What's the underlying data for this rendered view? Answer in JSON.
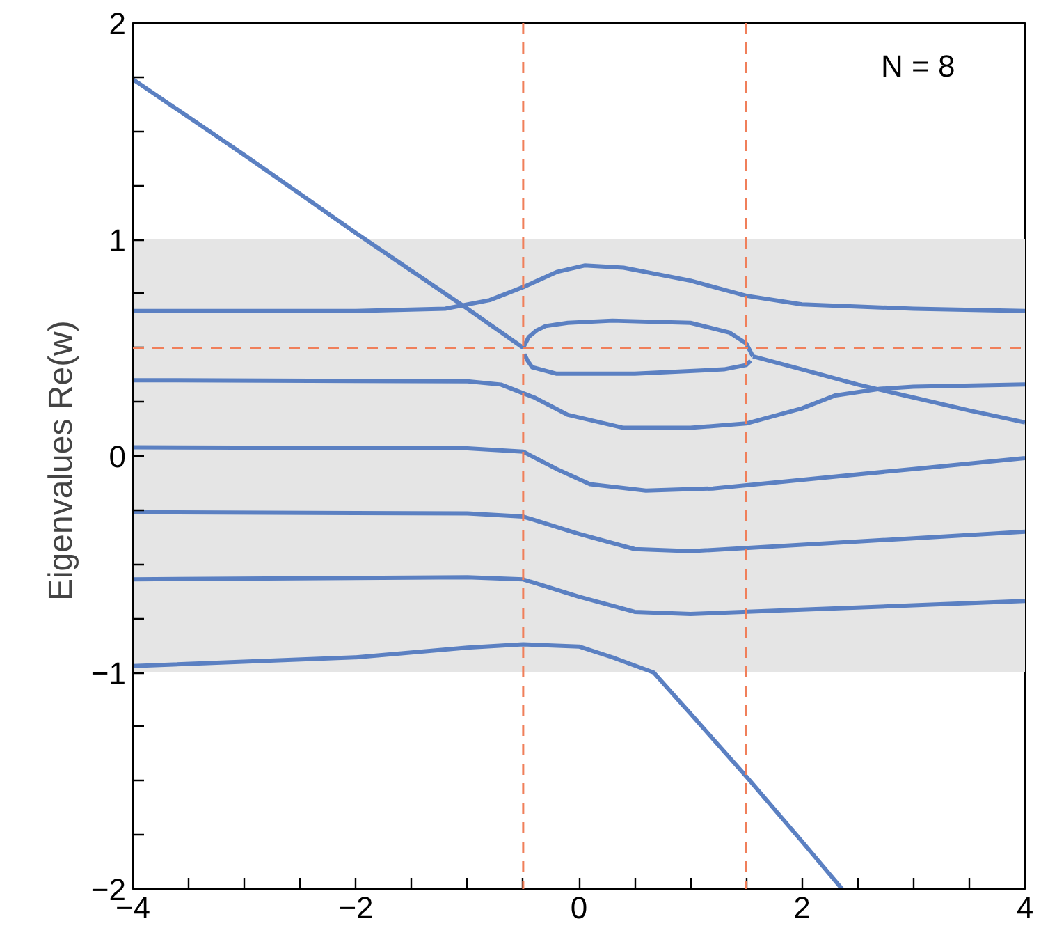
{
  "chart_data": {
    "type": "line",
    "ylabel": "Eigenvalues  Re(w)",
    "annotations": [
      "N = 8"
    ],
    "xlim": [
      -4,
      4
    ],
    "xticks": [
      {
        "value": -4,
        "label": "−4"
      },
      {
        "value": -3.5,
        "label": null
      },
      {
        "value": -3,
        "label": null
      },
      {
        "value": -2.5,
        "label": null
      },
      {
        "value": -2,
        "label": "−2"
      },
      {
        "value": -1.5,
        "label": null
      },
      {
        "value": -1,
        "label": null
      },
      {
        "value": -0.5,
        "label": null
      },
      0,
      {
        "value": 0.5,
        "label": null
      },
      {
        "value": 1,
        "label": null
      },
      {
        "value": 1.5,
        "label": null
      },
      2,
      {
        "value": 2.5,
        "label": null
      },
      {
        "value": 3,
        "label": null
      },
      {
        "value": 3.5,
        "label": null
      },
      4
    ],
    "ylim": [
      -2,
      2
    ],
    "yticks": [
      {
        "value": -2,
        "label": "−2"
      },
      {
        "value": -1.75,
        "label": null
      },
      {
        "value": -1.5,
        "label": null
      },
      {
        "value": -1.25,
        "label": null
      },
      {
        "value": -1,
        "label": "−1"
      },
      {
        "value": -0.75,
        "label": null
      },
      {
        "value": -0.5,
        "label": null
      },
      {
        "value": -0.25,
        "label": null
      },
      0,
      {
        "value": 0.25,
        "label": null
      },
      {
        "value": 0.5,
        "label": null
      },
      {
        "value": 0.75,
        "label": null
      },
      1,
      {
        "value": 1.25,
        "label": null
      },
      {
        "value": 1.5,
        "label": null
      },
      {
        "value": 1.75,
        "label": null
      },
      2
    ],
    "grid": false,
    "line_style": "solid",
    "bands": [
      {
        "axis": "y",
        "from": -1,
        "to": 1,
        "color": "#e5e5e5"
      }
    ],
    "ref_lines": [
      {
        "axis": "x",
        "value": -0.5,
        "color": "#f07f5a",
        "line_style": "dashed"
      },
      {
        "axis": "x",
        "value": 1.5,
        "color": "#f07f5a",
        "line_style": "dashed"
      },
      {
        "axis": "y",
        "value": 0.5,
        "color": "#f07f5a",
        "line_style": "dashed"
      }
    ],
    "series": [
      {
        "color": "#5b80c2",
        "x": [
          -4,
          -3,
          -2,
          -1,
          -0.5
        ],
        "values": [
          1.74,
          1.39,
          1.03,
          0.68,
          0.5
        ]
      },
      {
        "color": "#5b80c2",
        "x": [
          -0.5,
          -0.45,
          -0.38,
          -0.3,
          -0.1,
          0.3,
          1,
          1.35,
          1.5,
          1.56
        ],
        "values": [
          0.5,
          0.55,
          0.58,
          0.6,
          0.615,
          0.625,
          0.615,
          0.57,
          0.52,
          0.46
        ]
      },
      {
        "color": "#5b80c2",
        "x": [
          -0.49,
          -0.46,
          -0.42,
          -0.2,
          0.5,
          1.3,
          1.5,
          1.54
        ],
        "values": [
          0.47,
          0.44,
          0.41,
          0.38,
          0.38,
          0.4,
          0.42,
          0.44
        ]
      },
      {
        "color": "#5b80c2",
        "x": [
          1.56,
          2,
          2.5,
          3,
          3.5,
          4
        ],
        "values": [
          0.46,
          0.4,
          0.33,
          0.27,
          0.21,
          0.155
        ]
      },
      {
        "color": "#5b80c2",
        "x": [
          -4,
          -2,
          -1.2,
          -0.8,
          -0.5,
          -0.2,
          0.05,
          0.4,
          1,
          1.5,
          2,
          3,
          4
        ],
        "values": [
          0.67,
          0.67,
          0.68,
          0.72,
          0.78,
          0.85,
          0.88,
          0.87,
          0.81,
          0.74,
          0.7,
          0.68,
          0.67
        ]
      },
      {
        "color": "#5b80c2",
        "x": [
          -4,
          -1,
          -0.7,
          -0.4,
          -0.1,
          0.4,
          1,
          1.5,
          2,
          2.3,
          2.7,
          3,
          4
        ],
        "values": [
          0.35,
          0.345,
          0.33,
          0.27,
          0.19,
          0.13,
          0.13,
          0.15,
          0.22,
          0.28,
          0.31,
          0.32,
          0.33
        ]
      },
      {
        "color": "#5b80c2",
        "x": [
          -4,
          -1,
          -0.5,
          -0.2,
          0.1,
          0.6,
          1.2,
          2,
          3,
          4
        ],
        "values": [
          0.04,
          0.035,
          0.02,
          -0.06,
          -0.13,
          -0.16,
          -0.15,
          -0.11,
          -0.06,
          -0.01
        ]
      },
      {
        "color": "#5b80c2",
        "x": [
          -4,
          -1,
          -0.5,
          0,
          0.5,
          1,
          2,
          3,
          4
        ],
        "values": [
          -0.26,
          -0.265,
          -0.28,
          -0.36,
          -0.43,
          -0.44,
          -0.41,
          -0.38,
          -0.35
        ]
      },
      {
        "color": "#5b80c2",
        "x": [
          -4,
          -1,
          -0.5,
          0,
          0.5,
          1,
          2,
          3,
          4
        ],
        "values": [
          -0.57,
          -0.56,
          -0.57,
          -0.65,
          -0.72,
          -0.73,
          -0.71,
          -0.69,
          -0.67
        ]
      },
      {
        "color": "#5b80c2",
        "x": [
          -4,
          -2,
          -1,
          -0.5,
          0,
          0.3,
          0.67,
          1,
          1.5,
          2,
          2.36
        ],
        "values": [
          -0.97,
          -0.93,
          -0.885,
          -0.87,
          -0.88,
          -0.93,
          -1.0,
          -1.19,
          -1.48,
          -1.78,
          -2.0
        ]
      }
    ]
  }
}
